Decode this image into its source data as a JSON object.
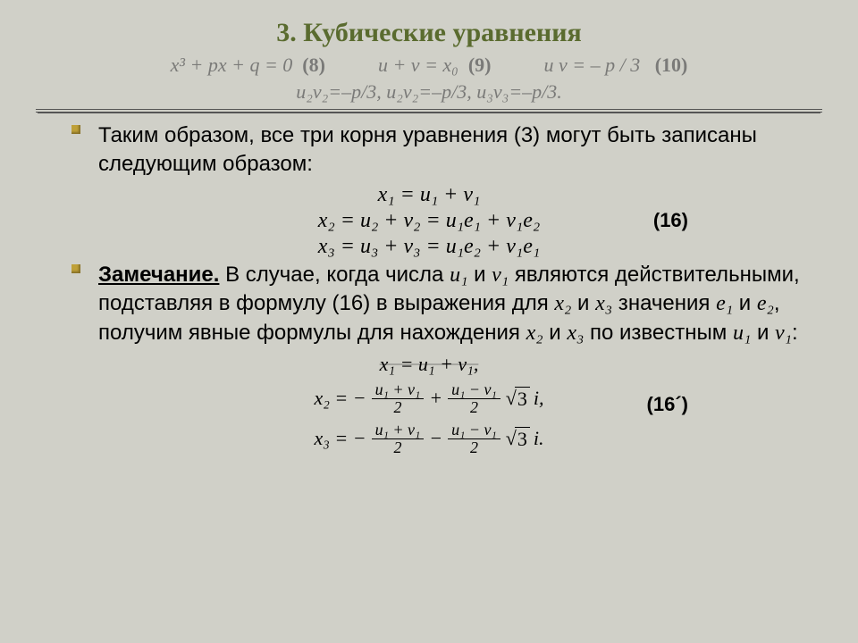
{
  "title": "3. Кубические уравнения",
  "sub1": {
    "e1": "x³ + px + q = 0",
    "l1": "(8)",
    "e2": "u + v = x₀",
    "l2": "(9)",
    "e3": "u v = – p / 3",
    "l3": "(10)"
  },
  "sub2": "u₂v₂=–p/3,   u₂v₂=–p/3,   u₃v₃=–p/3.",
  "para1": "Таким образом, все три корня уравнения (3) могут быть записаны следующим образом:",
  "eqs": {
    "r1": "x₁ = u₁ + v₁",
    "r2": "x₂ = u₂ + v₂ = u₁e₁ + v₁e₂",
    "r3": "x₃ = u₃ + v₃ = u₁e₂ + v₁e₁",
    "label": "(16)"
  },
  "remark_head": "Замечание.",
  "remark_body_a": " В случае, когда числа ",
  "remark_u1": "u₁",
  "remark_body_b": " и ",
  "remark_v1": "v₁",
  "remark_body_c": " являются действительными, подставляя в формулу (16) в выражения для ",
  "remark_x2": "x₂",
  "remark_body_d": " и ",
  "remark_x3": "x₃",
  "remark_body_e": " значения ",
  "remark_e1": "e₁",
  "remark_body_f": "и ",
  "remark_e2": "e₂",
  "remark_body_g": ", получим явные формулы для нахождения ",
  "remark_body_h": " по известным ",
  "remark_body_i": ":",
  "formulas": {
    "f1_lhs": "x₁ = u₁ + v₁,",
    "f2_lhs": "x₂ = −",
    "f3_lhs": "x₃ = −",
    "num_plus": "u₁ + v₁",
    "num_minus": "u₁ − v₁",
    "den": "2",
    "plus": " + ",
    "minus": " − ",
    "sqrt_arg": "3",
    "i_comma": "i,",
    "i_dot": "i.",
    "label": "(16´)"
  },
  "colors": {
    "bg": "#d0d0c8",
    "title": "#5a6b2f",
    "sub": "#7a7a78",
    "bullet": "#bfa038",
    "text": "#000000",
    "rule": "#555555"
  }
}
